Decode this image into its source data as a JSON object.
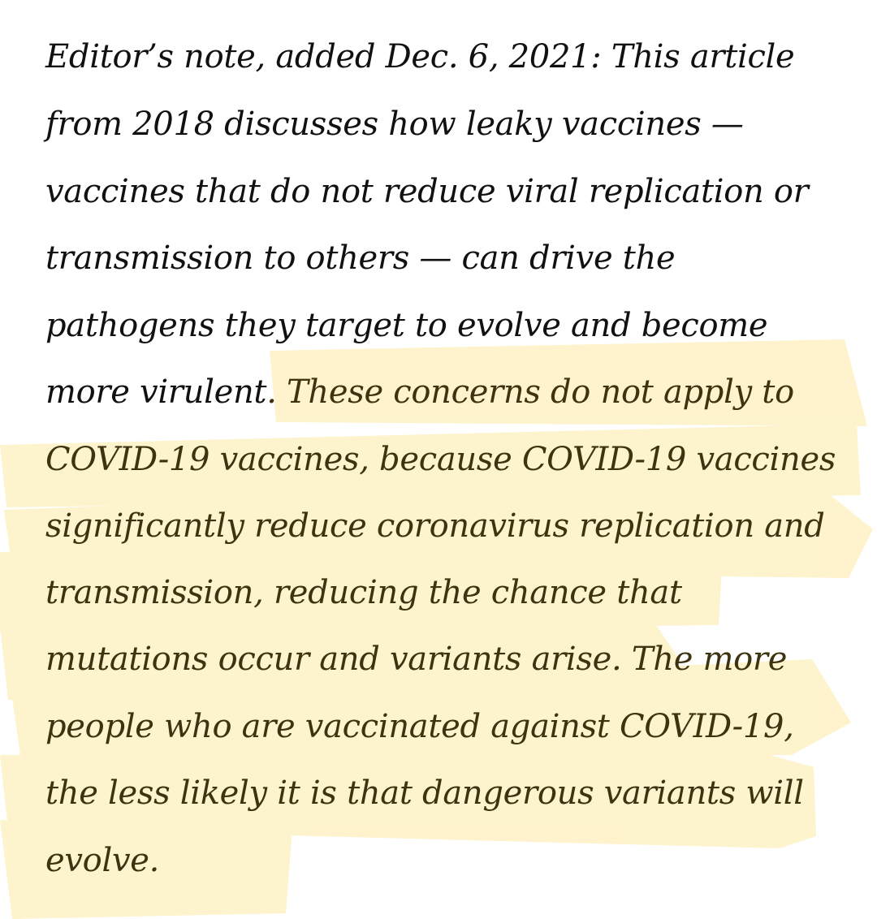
{
  "editor_note": {
    "lines": [
      {
        "plain": "Editor’s note, added Dec. 6, 2021: This article",
        "highlighted": ""
      },
      {
        "plain": "from 2018 discusses how leaky vaccines —",
        "highlighted": ""
      },
      {
        "plain": "vaccines that do not reduce viral replication or",
        "highlighted": ""
      },
      {
        "plain": "transmission to others — can drive the",
        "highlighted": ""
      },
      {
        "plain": "pathogens they target to evolve and become",
        "highlighted": ""
      },
      {
        "plain": "more virulent",
        "highlighted": ". These concerns do not apply to"
      },
      {
        "plain": "",
        "highlighted": "COVID-19 vaccines, because COVID-19 vaccines"
      },
      {
        "plain": "",
        "highlighted": "significantly reduce coronavirus replication and"
      },
      {
        "plain": "",
        "highlighted": "transmission, reducing the chance that"
      },
      {
        "plain": "",
        "highlighted": "mutations occur and variants arise. The more"
      },
      {
        "plain": "",
        "highlighted": "people who are vaccinated against COVID-19,"
      },
      {
        "plain": "",
        "highlighted": "the less likely it is that dangerous variants will"
      },
      {
        "plain": "",
        "highlighted": "evolve."
      }
    ]
  },
  "highlight_color": "#fde89a"
}
